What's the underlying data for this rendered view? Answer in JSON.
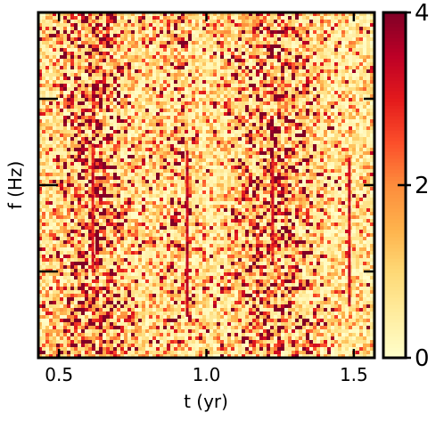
{
  "chart_data": {
    "type": "heatmap",
    "title": "",
    "xlabel": "t (yr)",
    "ylabel": "f (Hz)",
    "xlim": [
      0.43,
      1.57
    ],
    "x_ticks": [
      0.5,
      1.0,
      1.5
    ],
    "x_tick_labels": [
      "0.5",
      "1.0",
      "1.5"
    ],
    "y_ticks_count": 3,
    "y_tick_labels": [],
    "colorbar": {
      "colormap": "YlOrRd",
      "range": [
        0,
        4
      ],
      "ticks": [
        0,
        2,
        4
      ],
      "tick_labels": [
        "0",
        "2",
        "4"
      ]
    },
    "features": [
      {
        "kind": "noise-band",
        "t_center": 0.62,
        "t_width": 0.12,
        "intensity": 1.8
      },
      {
        "kind": "noise-band",
        "t_center": 1.22,
        "t_width": 0.13,
        "intensity": 1.8
      },
      {
        "kind": "noise-band",
        "t_center": 0.9,
        "t_width": 0.06,
        "intensity": 0.9
      },
      {
        "kind": "line",
        "t": 0.615,
        "f_from": 0.25,
        "f_to": 0.62,
        "value": 3.6
      },
      {
        "kind": "line",
        "t": 0.935,
        "f_from": 0.12,
        "f_to": 0.6,
        "value": 3.9
      },
      {
        "kind": "line",
        "t": 1.225,
        "f_from": 0.28,
        "f_to": 0.58,
        "value": 3.5
      },
      {
        "kind": "line",
        "t": 1.485,
        "f_from": 0.15,
        "f_to": 0.58,
        "value": 3.8
      }
    ],
    "background_level": 1.0,
    "grid": false,
    "legend": "none"
  }
}
